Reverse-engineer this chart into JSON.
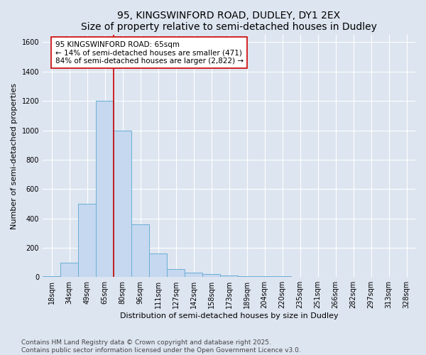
{
  "title": "95, KINGSWINFORD ROAD, DUDLEY, DY1 2EX",
  "subtitle": "Size of property relative to semi-detached houses in Dudley",
  "xlabel": "Distribution of semi-detached houses by size in Dudley",
  "ylabel": "Number of semi-detached properties",
  "categories": [
    "18sqm",
    "34sqm",
    "49sqm",
    "65sqm",
    "80sqm",
    "96sqm",
    "111sqm",
    "127sqm",
    "142sqm",
    "158sqm",
    "173sqm",
    "189sqm",
    "204sqm",
    "220sqm",
    "235sqm",
    "251sqm",
    "266sqm",
    "282sqm",
    "297sqm",
    "313sqm",
    "328sqm"
  ],
  "values": [
    5,
    100,
    500,
    1200,
    1000,
    360,
    160,
    55,
    30,
    20,
    10,
    8,
    5,
    5,
    3,
    2,
    1,
    1,
    1,
    1,
    1
  ],
  "bar_color": "#c5d8ef",
  "bar_edge_color": "#6aaed6",
  "highlight_index": 3,
  "highlight_line_color": "#cc0000",
  "annotation_text": "95 KINGSWINFORD ROAD: 65sqm\n← 14% of semi-detached houses are smaller (471)\n84% of semi-detached houses are larger (2,822) →",
  "annotation_box_color": "#ffffff",
  "annotation_box_edge_color": "#cc0000",
  "ylim": [
    0,
    1650
  ],
  "yticks": [
    0,
    200,
    400,
    600,
    800,
    1000,
    1200,
    1400,
    1600
  ],
  "footer_line1": "Contains HM Land Registry data © Crown copyright and database right 2025.",
  "footer_line2": "Contains public sector information licensed under the Open Government Licence v3.0.",
  "background_color": "#dde5f0",
  "plot_background_color": "#dde5f0",
  "title_fontsize": 10,
  "subtitle_fontsize": 9,
  "axis_label_fontsize": 8,
  "tick_fontsize": 7,
  "annotation_fontsize": 7.5,
  "footer_fontsize": 6.5
}
